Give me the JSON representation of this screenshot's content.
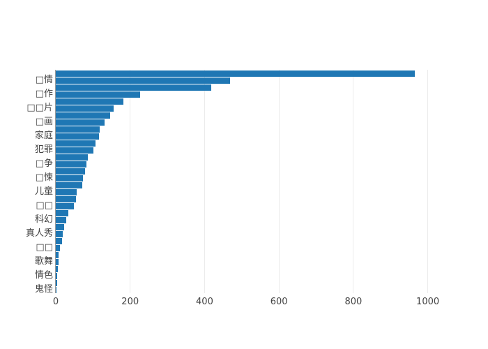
{
  "page": {
    "background_color": "#ffffff"
  },
  "chart_data": {
    "type": "bar",
    "orientation": "horizontal",
    "title": "",
    "xlabel": "",
    "ylabel": "",
    "xlim": [
      0,
      1012
    ],
    "x_ticks": [
      "0",
      "200",
      "400",
      "600",
      "800",
      "1000"
    ],
    "x_tick_values": [
      0,
      200,
      400,
      600,
      800,
      1000
    ],
    "grid": true,
    "legend_visible": false,
    "bar_color": "#1f77b4",
    "grid_color": "#ebebeb",
    "axis_line_color": "#9b9b9b",
    "tick_label_color": "#444444",
    "y_tick_note": "only alternating bars carry visible tick labels; missing-font glyphs shown as tofu boxes",
    "bars": [
      {
        "label": "",
        "value": 965
      },
      {
        "label": "□情",
        "value": 468
      },
      {
        "label": "",
        "value": 418
      },
      {
        "label": "□作",
        "value": 227
      },
      {
        "label": "",
        "value": 181
      },
      {
        "label": "□□片",
        "value": 155
      },
      {
        "label": "",
        "value": 147
      },
      {
        "label": "□画",
        "value": 132
      },
      {
        "label": "",
        "value": 118
      },
      {
        "label": "家庭",
        "value": 117
      },
      {
        "label": "",
        "value": 107
      },
      {
        "label": "犯罪",
        "value": 101
      },
      {
        "label": "",
        "value": 87
      },
      {
        "label": "□争",
        "value": 83
      },
      {
        "label": "",
        "value": 79
      },
      {
        "label": "□悚",
        "value": 73
      },
      {
        "label": "",
        "value": 72
      },
      {
        "label": "儿童",
        "value": 56
      },
      {
        "label": "",
        "value": 55
      },
      {
        "label": "□□",
        "value": 48
      },
      {
        "label": "",
        "value": 33
      },
      {
        "label": "科幻",
        "value": 28
      },
      {
        "label": "",
        "value": 23
      },
      {
        "label": "真人秀",
        "value": 19
      },
      {
        "label": "",
        "value": 16
      },
      {
        "label": "□□",
        "value": 12
      },
      {
        "label": "",
        "value": 8
      },
      {
        "label": "歌舞",
        "value": 7
      },
      {
        "label": "",
        "value": 5
      },
      {
        "label": "情色",
        "value": 4
      },
      {
        "label": "",
        "value": 3
      },
      {
        "label": "鬼怪",
        "value": 2
      }
    ]
  }
}
